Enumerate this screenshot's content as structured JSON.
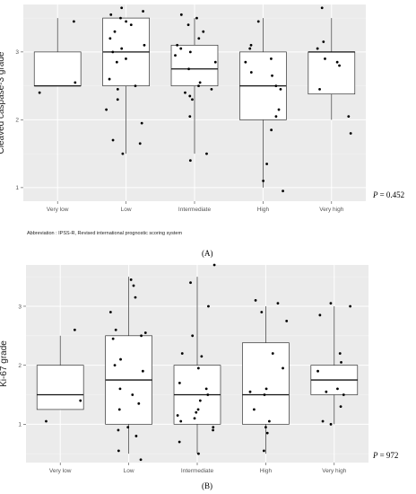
{
  "chart_data": [
    {
      "panel": "(A)",
      "type": "boxplot",
      "ylabel": "Cleaved caspase-3 grade",
      "categories": [
        "Very low",
        "Low",
        "Intermediate",
        "High",
        "Very high"
      ],
      "ylim": [
        0.8,
        3.7
      ],
      "yticks": [
        1,
        2,
        3
      ],
      "grid": true,
      "p_label": "P",
      "p_value": "= 0.452",
      "boxes": [
        {
          "category": "Very low",
          "min": 2.5,
          "q1": 2.5,
          "median": 2.5,
          "q3": 3.0,
          "max": 3.5
        },
        {
          "category": "Low",
          "min": 1.5,
          "q1": 2.5,
          "median": 3.0,
          "q3": 3.5,
          "max": 3.5
        },
        {
          "category": "Intermediate",
          "min": 1.5,
          "q1": 2.5,
          "median": 2.75,
          "q3": 3.1,
          "max": 3.5
        },
        {
          "category": "High",
          "min": 1.0,
          "q1": 2.0,
          "median": 2.5,
          "q3": 3.0,
          "max": 3.5
        },
        {
          "category": "Very high",
          "min": 2.0,
          "q1": 2.38,
          "median": 3.0,
          "q3": 3.0,
          "max": 3.5
        }
      ],
      "points": [
        [
          0,
          3.45
        ],
        [
          0,
          2.55
        ],
        [
          0,
          2.4
        ],
        [
          1,
          3.65
        ],
        [
          1,
          3.6
        ],
        [
          1,
          3.55
        ],
        [
          1,
          3.5
        ],
        [
          1,
          3.45
        ],
        [
          1,
          3.4
        ],
        [
          1,
          3.3
        ],
        [
          1,
          3.2
        ],
        [
          1,
          3.1
        ],
        [
          1,
          3.05
        ],
        [
          1,
          3.0
        ],
        [
          1,
          2.9
        ],
        [
          1,
          2.85
        ],
        [
          1,
          2.6
        ],
        [
          1,
          2.5
        ],
        [
          1,
          2.45
        ],
        [
          1,
          2.3
        ],
        [
          1,
          2.15
        ],
        [
          1,
          1.95
        ],
        [
          1,
          1.7
        ],
        [
          1,
          1.65
        ],
        [
          1,
          1.5
        ],
        [
          2,
          3.55
        ],
        [
          2,
          3.5
        ],
        [
          2,
          3.4
        ],
        [
          2,
          3.3
        ],
        [
          2,
          3.2
        ],
        [
          2,
          3.1
        ],
        [
          2,
          3.05
        ],
        [
          2,
          3.0
        ],
        [
          2,
          2.95
        ],
        [
          2,
          2.85
        ],
        [
          2,
          2.75
        ],
        [
          2,
          2.55
        ],
        [
          2,
          2.5
        ],
        [
          2,
          2.45
        ],
        [
          2,
          2.4
        ],
        [
          2,
          2.35
        ],
        [
          2,
          2.3
        ],
        [
          2,
          2.05
        ],
        [
          2,
          1.5
        ],
        [
          2,
          1.4
        ],
        [
          3,
          3.45
        ],
        [
          3,
          3.1
        ],
        [
          3,
          3.05
        ],
        [
          3,
          2.9
        ],
        [
          3,
          2.85
        ],
        [
          3,
          2.7
        ],
        [
          3,
          2.65
        ],
        [
          3,
          2.5
        ],
        [
          3,
          2.45
        ],
        [
          3,
          2.15
        ],
        [
          3,
          2.05
        ],
        [
          3,
          1.85
        ],
        [
          3,
          1.35
        ],
        [
          3,
          1.1
        ],
        [
          3,
          0.95
        ],
        [
          4,
          3.65
        ],
        [
          4,
          3.15
        ],
        [
          4,
          3.05
        ],
        [
          4,
          2.9
        ],
        [
          4,
          2.85
        ],
        [
          4,
          2.8
        ],
        [
          4,
          2.45
        ],
        [
          4,
          2.05
        ],
        [
          4,
          1.8
        ]
      ]
    },
    {
      "panel": "(B)",
      "type": "boxplot",
      "ylabel": "Ki-67 grade",
      "categories": [
        "Very low",
        "Low",
        "Intermediate",
        "High",
        "Very high"
      ],
      "ylim": [
        0.35,
        3.7
      ],
      "yticks": [
        1,
        2,
        3
      ],
      "grid": true,
      "p_label": "P",
      "p_value": "= 972",
      "boxes": [
        {
          "category": "Very low",
          "min": 1.25,
          "q1": 1.25,
          "median": 1.5,
          "q3": 2.0,
          "max": 2.5
        },
        {
          "category": "Low",
          "min": 0.5,
          "q1": 1.0,
          "median": 1.75,
          "q3": 2.5,
          "max": 3.5
        },
        {
          "category": "Intermediate",
          "min": 0.5,
          "q1": 1.0,
          "median": 1.5,
          "q3": 2.0,
          "max": 3.5
        },
        {
          "category": "High",
          "min": 0.5,
          "q1": 1.0,
          "median": 1.5,
          "q3": 2.38,
          "max": 3.0
        },
        {
          "category": "Very high",
          "min": 1.0,
          "q1": 1.5,
          "median": 1.75,
          "q3": 2.0,
          "max": 3.0
        }
      ],
      "points": [
        [
          0,
          2.6
        ],
        [
          0,
          1.4
        ],
        [
          0,
          1.05
        ],
        [
          1,
          3.45
        ],
        [
          1,
          3.35
        ],
        [
          1,
          3.15
        ],
        [
          1,
          2.9
        ],
        [
          1,
          2.6
        ],
        [
          1,
          2.55
        ],
        [
          1,
          2.5
        ],
        [
          1,
          2.45
        ],
        [
          1,
          2.1
        ],
        [
          1,
          2.0
        ],
        [
          1,
          1.9
        ],
        [
          1,
          1.6
        ],
        [
          1,
          1.5
        ],
        [
          1,
          1.35
        ],
        [
          1,
          1.25
        ],
        [
          1,
          0.95
        ],
        [
          1,
          0.9
        ],
        [
          1,
          0.8
        ],
        [
          1,
          0.55
        ],
        [
          1,
          0.4
        ],
        [
          2,
          3.7
        ],
        [
          2,
          3.4
        ],
        [
          2,
          3.0
        ],
        [
          2,
          2.5
        ],
        [
          2,
          2.2
        ],
        [
          2,
          2.15
        ],
        [
          2,
          1.95
        ],
        [
          2,
          1.7
        ],
        [
          2,
          1.6
        ],
        [
          2,
          1.5
        ],
        [
          2,
          1.4
        ],
        [
          2,
          1.25
        ],
        [
          2,
          1.2
        ],
        [
          2,
          1.15
        ],
        [
          2,
          1.1
        ],
        [
          2,
          1.05
        ],
        [
          2,
          0.95
        ],
        [
          2,
          0.9
        ],
        [
          2,
          0.7
        ],
        [
          2,
          0.5
        ],
        [
          3,
          3.1
        ],
        [
          3,
          3.05
        ],
        [
          3,
          2.9
        ],
        [
          3,
          2.75
        ],
        [
          3,
          2.2
        ],
        [
          3,
          1.95
        ],
        [
          3,
          1.6
        ],
        [
          3,
          1.55
        ],
        [
          3,
          1.5
        ],
        [
          3,
          1.25
        ],
        [
          3,
          1.05
        ],
        [
          3,
          0.95
        ],
        [
          3,
          0.85
        ],
        [
          3,
          0.55
        ],
        [
          4,
          3.05
        ],
        [
          4,
          3.0
        ],
        [
          4,
          2.85
        ],
        [
          4,
          2.2
        ],
        [
          4,
          2.05
        ],
        [
          4,
          1.9
        ],
        [
          4,
          1.6
        ],
        [
          4,
          1.55
        ],
        [
          4,
          1.5
        ],
        [
          4,
          1.3
        ],
        [
          4,
          1.05
        ],
        [
          4,
          1.0
        ]
      ]
    }
  ],
  "abbreviation": "Abbreviation : IPSS-R, Revised international prognostic scoring system",
  "label_a": "(A)",
  "label_b": "(B)",
  "colors": {
    "panel_bg": "#ebebeb",
    "grid_major": "#ffffff",
    "box_fill": "#ffffff",
    "box_stroke": "#333333",
    "point": "#000000"
  }
}
